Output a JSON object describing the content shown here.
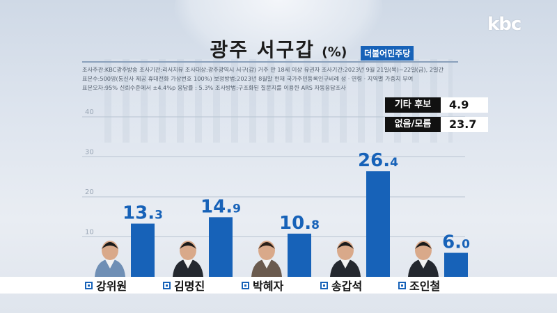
{
  "logo": "kbc",
  "title": {
    "main": "광주 서구갑",
    "unit": "(%)",
    "party_tag": "더불어민주당"
  },
  "survey_meta": [
    "조사주관:KBC광주방송    조사기관:리서치뷰    조사대상:광주광역시 서구(갑) 거주 만 18세 이상 유권자    조사기간:2023년 9월 21일(목)~22일(금), 2일간",
    "표본수:500명(통신사 제공 휴대전화 가상번호 100%)    보정방법:2023년 8월말 현재 국가주민등록인구비례 성 · 연령 · 지역별 가중치 부여",
    "표본오차:95% 신뢰수준에서 ±4.4%p    응답률 : 5.3%    조사방법:구조화된 질문지를 이용한 ARS 자동응답조사"
  ],
  "side_stats": [
    {
      "label": "기타 후보",
      "value": "4.9"
    },
    {
      "label": "없음/모름",
      "value": "23.7"
    }
  ],
  "chart_data": {
    "type": "bar",
    "categories": [
      "강위원",
      "김명진",
      "박혜자",
      "송갑석",
      "조인철"
    ],
    "values": [
      13.3,
      14.9,
      10.8,
      26.4,
      6.0
    ],
    "value_labels": [
      "13.3",
      "14.9",
      "10.8",
      "26.4",
      "6.0"
    ],
    "y_ticks": [
      "10",
      "20",
      "30",
      "40"
    ],
    "ylim": [
      0,
      40
    ],
    "grid": true,
    "bar_color": "#1762b8",
    "title": "광주 서구갑",
    "xlabel": "",
    "ylabel": ""
  }
}
